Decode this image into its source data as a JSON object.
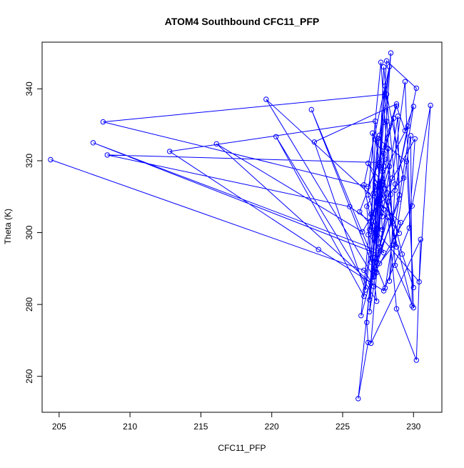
{
  "chart_data": {
    "type": "line",
    "title": "ATOM4 Southbound CFC11_PFP",
    "xlabel": "CFC11_PFP",
    "ylabel": "Theta (K)",
    "xlim": [
      203.8,
      232.0
    ],
    "ylim": [
      250.0,
      353.0
    ],
    "xticks": [
      205,
      210,
      215,
      220,
      225,
      230
    ],
    "yticks": [
      260,
      280,
      300,
      320,
      340
    ],
    "grid": false,
    "legend": "none",
    "markers": "open-circle",
    "series": [
      {
        "color": "#0000ff",
        "x": [
          204.4,
          226.5,
          227.2,
          226.9,
          228.0,
          228.5,
          227.5,
          207.4,
          227.9,
          227.0,
          229.3,
          228.1,
          208.1,
          226.8,
          227.6,
          208.4,
          225.5,
          227.8,
          227.3,
          212.8,
          223.3,
          227.9,
          229.7,
          230.1,
          226.4,
          216.1,
          227.0,
          227.6,
          228.6,
          229.1,
          219.6,
          227.2,
          227.4,
          220.3,
          226.5,
          227.6,
          228.8,
          229.4,
          230.0,
          228.0,
          222.8,
          227.3,
          229.9,
          231.2,
          230.4,
          226.2,
          227.8,
          228.8,
          223.0,
          226.6,
          227.8,
          229.2,
          230.0,
          229.5,
          227.5,
          226.3,
          228.2,
          228.8,
          230.2,
          230.5,
          227.0,
          227.4,
          228.4,
          227.9,
          226.7,
          226.8,
          226.1,
          227.6,
          227.9,
          226.9,
          227.6,
          228.3,
          226.5,
          227.3,
          227.9,
          228.6,
          229.0,
          227.2,
          227.8,
          228.2,
          226.9,
          228.1,
          230.2,
          228.7,
          229.6,
          226.7,
          227.0,
          227.3,
          227.8,
          228.9,
          229.0,
          227.4,
          227.1,
          228.0,
          226.8,
          227.6,
          228.5,
          229.4,
          230.0,
          228.7,
          227.7,
          226.8,
          227.5,
          228.1,
          227.3,
          227.9,
          228.7,
          228.3,
          229.8,
          229.9,
          227.8,
          228.8,
          227.3,
          227.0,
          228.3,
          227.5,
          229.0,
          226.8,
          228.4,
          227.2,
          227.6,
          227.9,
          227.2
        ],
        "y": [
          320.3,
          289.5,
          285.0,
          278.0,
          340.8,
          303.0,
          294.0,
          325.0,
          294.4,
          305.1,
          315.2,
          338.5,
          330.8,
          312.8,
          319.5,
          321.6,
          307.2,
          300.8,
          331.0,
          322.6,
          295.3,
          283.8,
          301.3,
          326.1,
          300.2,
          324.7,
          286.0,
          291.4,
          296.5,
          302.8,
          337.1,
          287.6,
          280.9,
          326.7,
          282.3,
          318.4,
          335.2,
          328.4,
          335.1,
          284.6,
          334.2,
          289.1,
          307.4,
          335.4,
          286.3,
          305.8,
          322.7,
          335.8,
          325.2,
          284.0,
          317.0,
          294.0,
          284.7,
          319.8,
          326.2,
          276.9,
          304.3,
          278.8,
          264.5,
          298.1,
          269.2,
          288.9,
          350.0,
          330.7,
          275.0,
          269.4,
          253.8,
          310.1,
          318.5,
          300.8,
          327.1,
          346.2,
          313.3,
          297.5,
          322.0,
          331.8,
          310.5,
          288.3,
          310.5,
          323.4,
          281.3,
          347.8,
          340.2,
          311.8,
          329.6,
          307.3,
          291.8,
          313.8,
          304.5,
          332.4,
          309.3,
          291.9,
          327.7,
          320.4,
          299.4,
          296.0,
          315.2,
          342.0,
          279.1,
          290.9,
          347.4,
          310.5,
          301.1,
          330.9,
          293.1,
          346.1,
          313.5,
          286.5,
          327.0,
          279.6,
          313.3,
          296.0,
          326.0,
          300.4,
          318.4,
          307.9,
          299.8,
          319.3,
          310.6,
          287.9,
          312.6,
          306.5,
          311.0
        ]
      }
    ]
  }
}
